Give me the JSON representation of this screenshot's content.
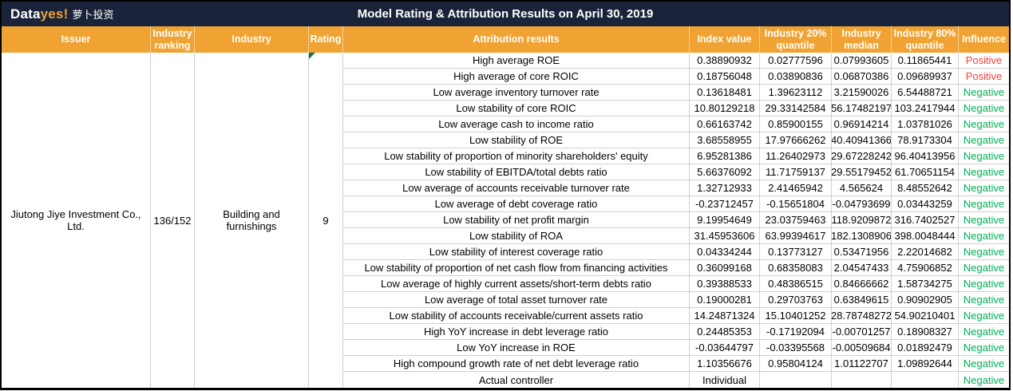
{
  "brand": {
    "logo_data": "Data",
    "logo_yes": "yes!",
    "logo_cn": "萝卜投资"
  },
  "title": "Model Rating & Attribution Results on April 30, 2019",
  "colors": {
    "bar_navy": "#19243B",
    "header_orange": "#F0A232",
    "positive_red": "#F5413D",
    "negative_green": "#00B050",
    "flag_green": "#1E7145"
  },
  "columns": {
    "issuer": "Issuer",
    "industry_ranking": "Industry ranking",
    "industry": "Industry",
    "rating": "Rating",
    "attribution_results": "Attribution results",
    "index_value": "Index value",
    "q20": "Industry 20% quantile",
    "median": "Industry median",
    "q80": "Industry 80% quantile",
    "influence": "Influence"
  },
  "issuer_info": {
    "issuer": "Jiutong Jiye Investment Co., Ltd.",
    "industry_ranking": "136/152",
    "industry": "Building and furnishings",
    "rating": "9"
  },
  "rows": [
    {
      "label": "High average ROE",
      "index_value": "0.38890932",
      "q20": "0.02777596",
      "median": "0.07993605",
      "q80": "0.11865441",
      "influence": "Positive"
    },
    {
      "label": "High average of core ROIC",
      "index_value": "0.18756048",
      "q20": "0.03890836",
      "median": "0.06870386",
      "q80": "0.09689937",
      "influence": "Positive"
    },
    {
      "label": "Low average inventory turnover rate",
      "index_value": "0.13618481",
      "q20": "1.39623112",
      "median": "3.21590026",
      "q80": "6.54488721",
      "influence": "Negative"
    },
    {
      "label": "Low stability of core ROIC",
      "index_value": "10.80129218",
      "q20": "29.33142584",
      "median": "56.17482197",
      "q80": "103.2417944",
      "influence": "Negative"
    },
    {
      "label": "Low average cash to income ratio",
      "index_value": "0.66163742",
      "q20": "0.85900155",
      "median": "0.96914214",
      "q80": "1.03781026",
      "influence": "Negative"
    },
    {
      "label": "Low stability of ROE",
      "index_value": "3.68558955",
      "q20": "17.97666262",
      "median": "40.40941366",
      "q80": "78.9173304",
      "influence": "Negative"
    },
    {
      "label": "Low stability of proportion of minority shareholders' equity",
      "index_value": "6.95281386",
      "q20": "11.26402973",
      "median": "29.67228242",
      "q80": "96.40413956",
      "influence": "Negative"
    },
    {
      "label": "Low stability of EBITDA/total debts ratio",
      "index_value": "5.66376092",
      "q20": "11.71759137",
      "median": "29.55179452",
      "q80": "61.70651154",
      "influence": "Negative"
    },
    {
      "label": "Low average of accounts receivable turnover rate",
      "index_value": "1.32712933",
      "q20": "2.41465942",
      "median": "4.565624",
      "q80": "8.48552642",
      "influence": "Negative"
    },
    {
      "label": "Low average of debt coverage ratio",
      "index_value": "-0.23712457",
      "q20": "-0.15651804",
      "median": "-0.04793699",
      "q80": "0.03443259",
      "influence": "Negative"
    },
    {
      "label": "Low stability of net profit margin",
      "index_value": "9.19954649",
      "q20": "23.03759463",
      "median": "118.9209872",
      "q80": "316.7402527",
      "influence": "Negative"
    },
    {
      "label": "Low stability of ROA",
      "index_value": "31.45953606",
      "q20": "63.99394617",
      "median": "182.1308906",
      "q80": "398.0048444",
      "influence": "Negative"
    },
    {
      "label": "Low stability of interest coverage ratio",
      "index_value": "0.04334244",
      "q20": "0.13773127",
      "median": "0.53471956",
      "q80": "2.22014682",
      "influence": "Negative"
    },
    {
      "label": "Low stability of proportion of net cash flow from financing activities",
      "index_value": "0.36099168",
      "q20": "0.68358083",
      "median": "2.04547433",
      "q80": "4.75906852",
      "influence": "Negative"
    },
    {
      "label": "Low average of highly current assets/short-term debts ratio",
      "index_value": "0.39388533",
      "q20": "0.48386515",
      "median": "0.84666662",
      "q80": "1.58734275",
      "influence": "Negative"
    },
    {
      "label": "Low average of total asset turnover rate",
      "index_value": "0.19000281",
      "q20": "0.29703763",
      "median": "0.63849615",
      "q80": "0.90902905",
      "influence": "Negative"
    },
    {
      "label": "Low stability of accounts receivable/current assets ratio",
      "index_value": "14.24871324",
      "q20": "15.10401252",
      "median": "28.78748272",
      "q80": "54.90210401",
      "influence": "Negative"
    },
    {
      "label": "High YoY increase in debt leverage ratio",
      "index_value": "0.24485353",
      "q20": "-0.17192094",
      "median": "-0.00701257",
      "q80": "0.18908327",
      "influence": "Negative"
    },
    {
      "label": "Low YoY increase in ROE",
      "index_value": "-0.03644797",
      "q20": "-0.03395568",
      "median": "-0.00509684",
      "q80": "0.01892479",
      "influence": "Negative"
    },
    {
      "label": "High compound growth rate of net debt leverage ratio",
      "index_value": "1.10356676",
      "q20": "0.95804124",
      "median": "1.01122707",
      "q80": "1.09892644",
      "influence": "Negative"
    },
    {
      "label": "Actual controller",
      "index_value": "Individual",
      "q20": "",
      "median": "",
      "q80": "",
      "influence": "Negative"
    }
  ]
}
